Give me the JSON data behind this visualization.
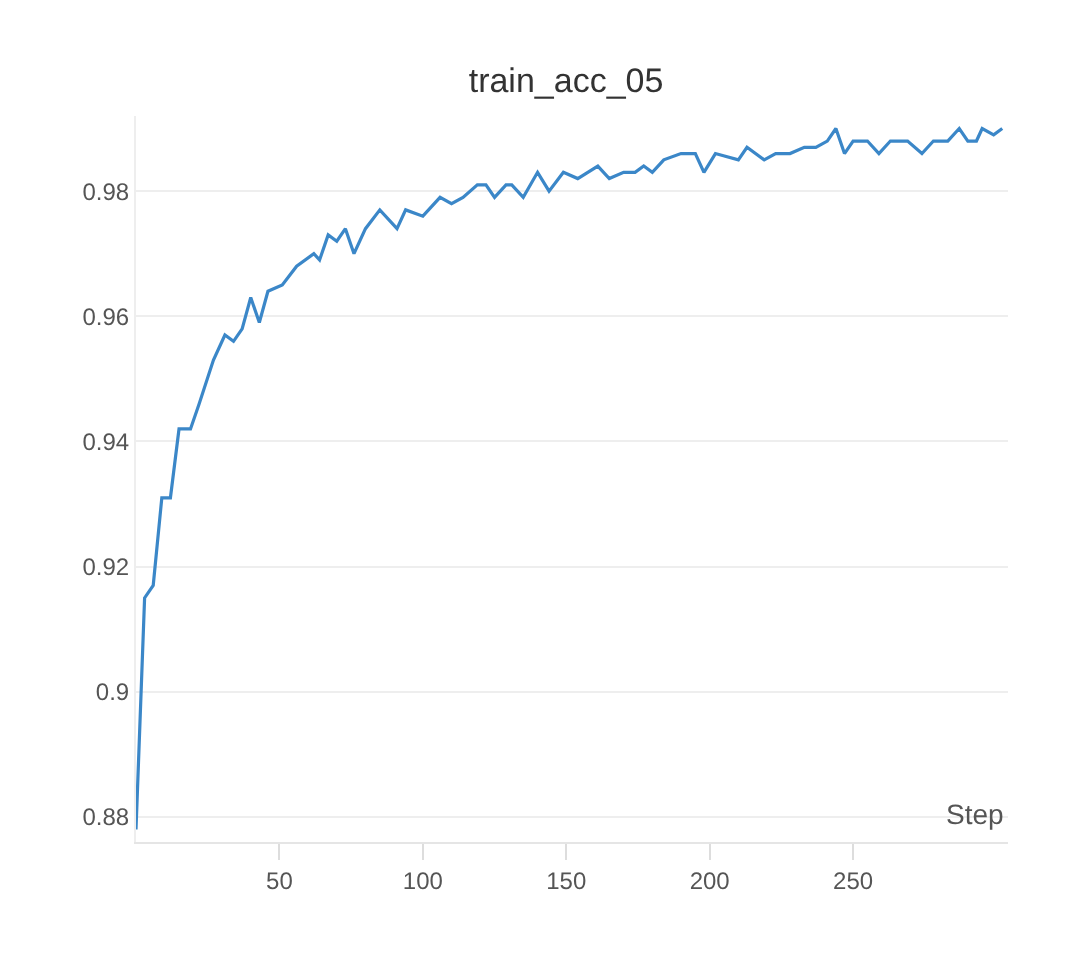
{
  "chart_data": {
    "type": "line",
    "title": "train_acc_05",
    "xlabel": "Step",
    "xlim": [
      0,
      304
    ],
    "ylim": [
      0.876,
      0.992
    ],
    "xticks": [
      50,
      100,
      150,
      200,
      250
    ],
    "yticks": [
      0.88,
      0.9,
      0.92,
      0.94,
      0.96,
      0.98
    ],
    "grid": "y",
    "marker": "none",
    "line_style": "solid",
    "series": [
      {
        "color": "#3b87c8",
        "x": [
          0,
          3,
          6,
          9,
          12,
          15,
          19,
          22,
          27,
          31,
          34,
          37,
          40,
          43,
          46,
          51,
          56,
          62,
          64,
          67,
          70,
          73,
          76,
          80,
          85,
          91,
          94,
          100,
          106,
          110,
          114,
          119,
          122,
          125,
          129,
          131,
          135,
          140,
          144,
          149,
          154,
          161,
          165,
          170,
          174,
          177,
          180,
          184,
          190,
          195,
          198,
          202,
          210,
          213,
          219,
          223,
          228,
          233,
          237,
          241,
          244,
          247,
          250,
          255,
          259,
          263,
          269,
          274,
          278,
          283,
          287,
          290,
          293,
          295,
          299,
          302
        ],
        "values": [
          0.878,
          0.915,
          0.917,
          0.931,
          0.931,
          0.942,
          0.942,
          0.946,
          0.953,
          0.957,
          0.956,
          0.958,
          0.963,
          0.959,
          0.964,
          0.965,
          0.968,
          0.97,
          0.969,
          0.973,
          0.972,
          0.974,
          0.97,
          0.974,
          0.977,
          0.974,
          0.977,
          0.976,
          0.979,
          0.978,
          0.979,
          0.981,
          0.981,
          0.979,
          0.981,
          0.981,
          0.979,
          0.983,
          0.98,
          0.983,
          0.982,
          0.984,
          0.982,
          0.983,
          0.983,
          0.984,
          0.983,
          0.985,
          0.986,
          0.986,
          0.983,
          0.986,
          0.985,
          0.987,
          0.985,
          0.986,
          0.986,
          0.987,
          0.987,
          0.988,
          0.99,
          0.986,
          0.988,
          0.988,
          0.986,
          0.988,
          0.988,
          0.986,
          0.988,
          0.988,
          0.99,
          0.988,
          0.988,
          0.99,
          0.989,
          0.99
        ]
      }
    ]
  }
}
